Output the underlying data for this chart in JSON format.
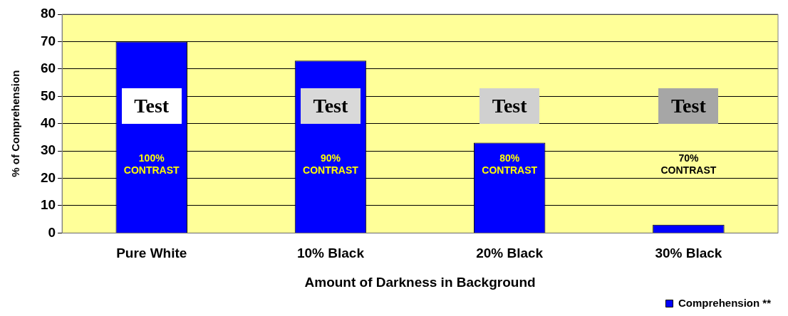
{
  "chart_data": {
    "type": "bar",
    "xlabel": "Amount of Darkness in Background",
    "ylabel": "% of Comprehension",
    "categories": [
      "Pure White",
      "10% Black",
      "20% Black",
      "30% Black"
    ],
    "series": [
      {
        "name": "Comprehension **",
        "color": "#0000ff",
        "values": [
          70,
          63,
          33,
          3
        ]
      }
    ],
    "ylim": [
      0,
      80
    ],
    "yticks": [
      0,
      10,
      20,
      30,
      40,
      50,
      60,
      70,
      80
    ],
    "grid": "y",
    "legend": "bottom right",
    "annotations": [
      "Test",
      "Test",
      "Test",
      "Test",
      "100%\nCONTRAST",
      "90%\nCONTRAST",
      "80%\nCONTRAST",
      "70%\nCONTRAST"
    ]
  }
}
